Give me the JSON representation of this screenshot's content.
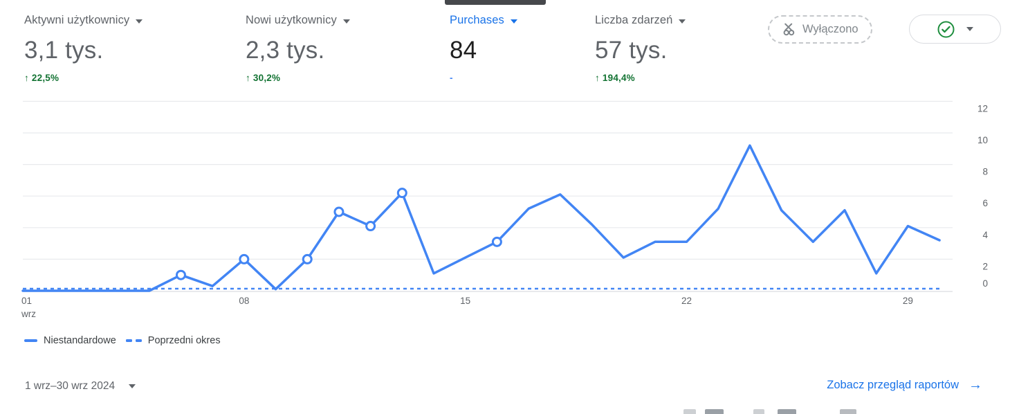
{
  "colors": {
    "accent_blue": "#1a73e8",
    "line_blue": "#4285f4",
    "positive_green": "#137333",
    "text_gray": "#5f6368",
    "grid_gray": "#e8eaed",
    "axis_gray": "#dadce0"
  },
  "metrics": [
    {
      "label": "Aktywni użytkownicy",
      "value": "3,1 tys.",
      "delta": "↑ 22,5%",
      "selected": false
    },
    {
      "label": "Nowi użytkownicy",
      "value": "2,3 tys.",
      "delta": "↑ 30,2%",
      "selected": false
    },
    {
      "label": "Purchases",
      "value": "84",
      "delta": "-",
      "selected": true
    },
    {
      "label": "Liczba zdarzeń",
      "value": "57 tys.",
      "delta": "↑ 194,4%",
      "selected": false
    }
  ],
  "toolbar": {
    "sampling_chip_label": "Wyłączono",
    "quality_button_tooltip": "ok"
  },
  "chart_data": {
    "type": "line",
    "title": "",
    "xlabel": "",
    "ylabel": "",
    "x_month_label": "wrz",
    "x_tick_days": [
      1,
      8,
      15,
      22,
      29
    ],
    "x_tick_labels": [
      "01",
      "08",
      "15",
      "22",
      "29"
    ],
    "y_ticks": [
      0,
      2,
      4,
      6,
      8,
      10,
      12
    ],
    "ylim": [
      0,
      12
    ],
    "yaxis_side": "right",
    "grid": true,
    "legend_position": "bottom-left",
    "days": [
      1,
      2,
      3,
      4,
      5,
      6,
      7,
      8,
      9,
      10,
      11,
      12,
      13,
      14,
      15,
      16,
      17,
      18,
      19,
      20,
      21,
      22,
      23,
      24,
      25,
      26,
      27,
      28,
      29,
      30
    ],
    "series": [
      {
        "name": "Niestandardowe",
        "style": "solid",
        "values": [
          0,
          0,
          0,
          0,
          0,
          1,
          0.3,
          2,
          0.1,
          2,
          5,
          4.1,
          6.2,
          1.1,
          2.1,
          3.1,
          5.2,
          6.1,
          4.2,
          2.1,
          3.1,
          3.1,
          5.2,
          9.2,
          5.1,
          3.1,
          5.1,
          1.1,
          4.1,
          3.2
        ],
        "marker_days": [
          6,
          8,
          10,
          11,
          12,
          13,
          16
        ]
      },
      {
        "name": "Poprzedni okres",
        "style": "dashed",
        "values": [
          0,
          0,
          0,
          0,
          0,
          0,
          0,
          0,
          0,
          0,
          0,
          0,
          0,
          0,
          0,
          0,
          0,
          0,
          0,
          0,
          0,
          0,
          0,
          0,
          0,
          0,
          0,
          0,
          0,
          0
        ],
        "marker_days": []
      }
    ]
  },
  "legend": [
    {
      "name": "Niestandardowe",
      "style": "solid"
    },
    {
      "name": "Poprzedni okres",
      "style": "dashed"
    }
  ],
  "footer": {
    "date_range": "1 wrz–30 wrz 2024",
    "report_link": "Zobacz przegląd raportów",
    "report_link_arrow": "→"
  }
}
